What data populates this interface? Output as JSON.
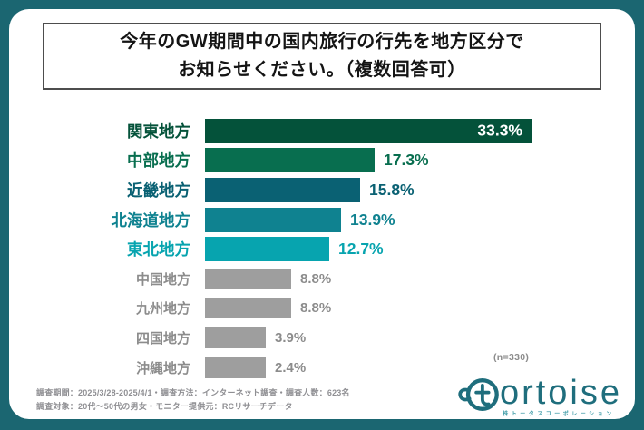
{
  "page": {
    "frame_color": "#1b6671",
    "card_color": "#ffffff"
  },
  "title": {
    "line1": "今年のGW期間中の国内旅行の行先を地方区分で",
    "line2": "お知らせください。（複数回答可）",
    "border_color": "#4d4d4d"
  },
  "chart_data": {
    "type": "bar",
    "orientation": "horizontal",
    "title": "今年のGW期間中の国内旅行の行先を地方区分でお知らせください。（複数回答可）",
    "unit": "%",
    "categories": [
      "関東地方",
      "中部地方",
      "近畿地方",
      "北海道地方",
      "東北地方",
      "中国地方",
      "九州地方",
      "四国地方",
      "沖縄地方"
    ],
    "values": [
      33.3,
      17.3,
      15.8,
      13.9,
      12.7,
      8.8,
      8.8,
      3.9,
      2.4
    ],
    "value_labels": [
      "33.3%",
      "17.3%",
      "15.8%",
      "13.9%",
      "12.7%",
      "8.8%",
      "8.8%",
      "3.9%",
      "2.4%"
    ],
    "bar_colors": [
      "#04523a",
      "#086e4f",
      "#0a6173",
      "#0f8290",
      "#07a4af",
      "#9e9e9e",
      "#9e9e9e",
      "#9e9e9e",
      "#9e9e9e"
    ],
    "gray_text_color": "#8c8c8c",
    "gray_from_index": 5,
    "first_label_inside_color": "#ffffff",
    "xlim": [
      0,
      36
    ],
    "sample_label": "(n=330)",
    "legend": "none",
    "grid": false
  },
  "footer": {
    "line1": "調査期間：2025/3/28-2025/4/1・調査方法：インターネット調査・調査人数：623名",
    "line2": "調査対象：20代～50代の男女・モニター提供元：RCリサーチデータ"
  },
  "logo": {
    "brand": "tortoise",
    "wordmark_rest": "ortoise",
    "subtext": "株トータスコーポレーション",
    "color": "#1f6e7d"
  }
}
